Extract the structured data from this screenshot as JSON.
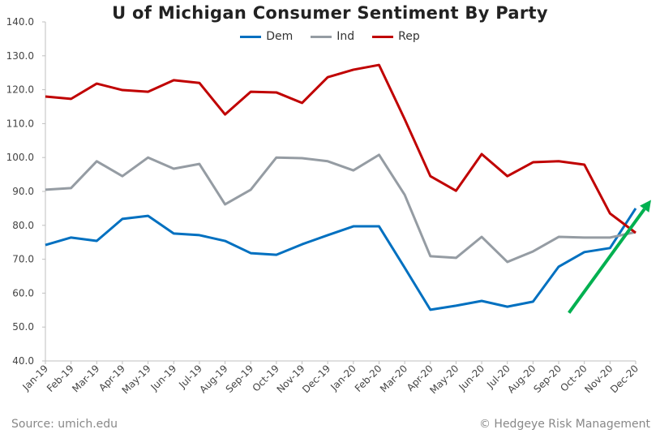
{
  "chart_data": {
    "type": "line",
    "title": "U of Michigan Consumer Sentiment By Party",
    "xlabel": "",
    "ylabel": "",
    "ylim": [
      40,
      140
    ],
    "yticks": [
      "40.0",
      "50.0",
      "60.0",
      "70.0",
      "80.0",
      "90.0",
      "100.0",
      "110.0",
      "120.0",
      "130.0",
      "140.0"
    ],
    "grid": false,
    "legend_placement": "top",
    "categories": [
      "Jan-19",
      "Feb-19",
      "Mar-19",
      "Apr-19",
      "May-19",
      "Jun-19",
      "Jul-19",
      "Aug-19",
      "Sep-19",
      "Oct-19",
      "Nov-19",
      "Dec-19",
      "Jan-20",
      "Feb-20",
      "Mar-20",
      "Apr-20",
      "May-20",
      "Jun-20",
      "Jul-20",
      "Aug-20",
      "Sep-20",
      "Oct-20",
      "Nov-20",
      "Dec-20"
    ],
    "series": [
      {
        "name": "Dem",
        "color": "#0070c0",
        "values": [
          74.2,
          76.4,
          75.4,
          81.9,
          82.8,
          77.6,
          77.1,
          75.4,
          71.8,
          71.3,
          74.4,
          77.1,
          79.7,
          79.7,
          67.5,
          55.1,
          56.3,
          57.7,
          56.0,
          57.5,
          67.8,
          72.1,
          73.3,
          85.0
        ]
      },
      {
        "name": "Ind",
        "color": "#959ca3",
        "values": [
          90.5,
          91.0,
          98.9,
          94.5,
          100.0,
          96.7,
          98.1,
          86.2,
          90.5,
          100.0,
          99.8,
          98.9,
          96.2,
          100.8,
          89.0,
          70.9,
          70.4,
          76.6,
          69.2,
          72.3,
          76.6,
          76.4,
          76.4,
          78.0
        ]
      },
      {
        "name": "Rep",
        "color": "#c00000",
        "values": [
          118.0,
          117.3,
          121.8,
          119.9,
          119.4,
          122.8,
          122.0,
          112.7,
          119.4,
          119.2,
          116.1,
          123.7,
          125.9,
          127.3,
          111.3,
          94.5,
          90.2,
          101.0,
          94.5,
          98.6,
          98.9,
          97.9,
          83.5,
          77.8
        ]
      }
    ],
    "annotations": [
      {
        "type": "arrow",
        "color": "#00b050",
        "from": {
          "x": 20.4,
          "y": 54.2
        },
        "to": {
          "x": 23.6,
          "y": 87.5
        }
      }
    ]
  },
  "footer": {
    "source": "Source: umich.edu",
    "copyright": "© Hedgeye Risk Management"
  }
}
